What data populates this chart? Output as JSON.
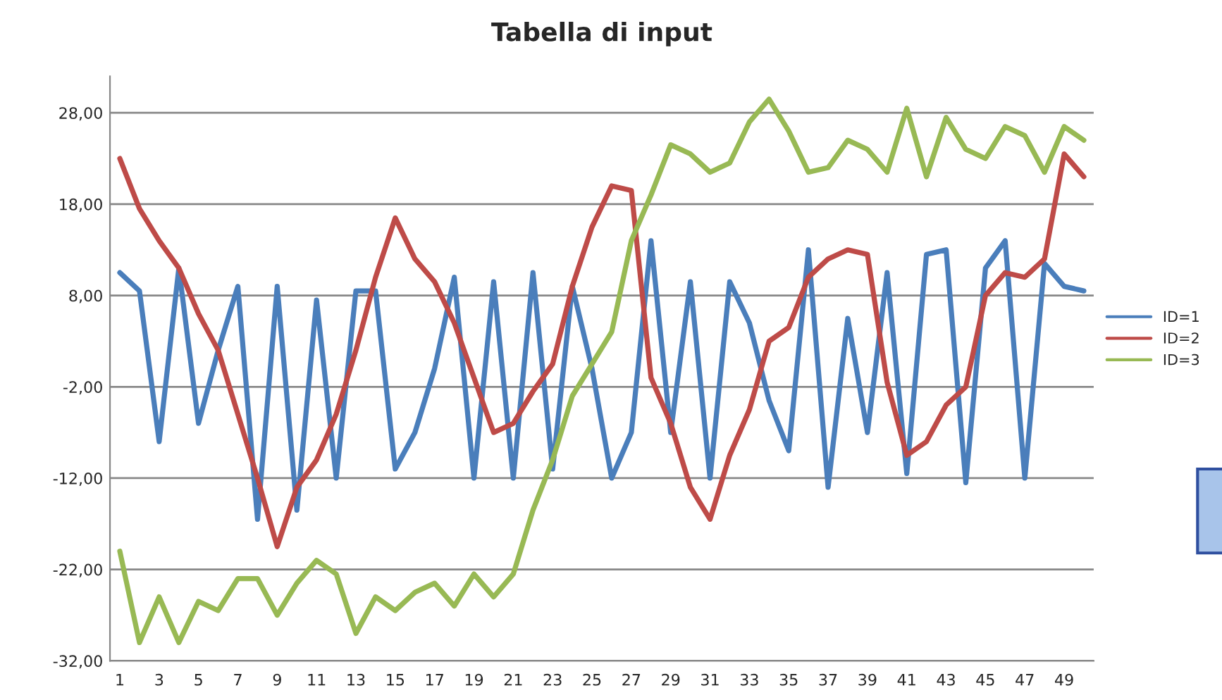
{
  "chart_data": {
    "type": "line",
    "title": "Tabella di input",
    "x": [
      1,
      2,
      3,
      4,
      5,
      6,
      7,
      8,
      9,
      10,
      11,
      12,
      13,
      14,
      15,
      16,
      17,
      18,
      19,
      20,
      21,
      22,
      23,
      24,
      25,
      26,
      27,
      28,
      29,
      30,
      31,
      32,
      33,
      34,
      35,
      36,
      37,
      38,
      39,
      40,
      41,
      42,
      43,
      44,
      45,
      46,
      47,
      48,
      49,
      50
    ],
    "series": [
      {
        "name": "ID=1",
        "color": "#4a7ebb",
        "values": [
          10.5,
          8.5,
          -8,
          11,
          -6,
          2,
          9,
          -16.5,
          9,
          -15.5,
          7.5,
          -12,
          8.5,
          8.5,
          -11,
          -7,
          0,
          10,
          -12,
          9.5,
          -12,
          10.5,
          -11,
          9,
          0,
          -12,
          -7,
          14,
          -7,
          9.5,
          -12,
          9.5,
          5,
          -3.5,
          -9,
          13,
          -13,
          5.5,
          -7,
          10.5,
          -11.5,
          12.5,
          13,
          -12.5,
          11,
          14,
          -12,
          11.5,
          9,
          8.5
        ]
      },
      {
        "name": "ID=2",
        "color": "#be4b48",
        "values": [
          23,
          17.5,
          14,
          11,
          6,
          2,
          -5,
          -12,
          -19.5,
          -13,
          -10,
          -5,
          2,
          10,
          16.5,
          12,
          9.5,
          5,
          -1,
          -7,
          -6,
          -2.5,
          0.5,
          9,
          15.5,
          20,
          19.5,
          -1,
          -6,
          -13,
          -16.5,
          -9.5,
          -4.5,
          3,
          4.5,
          10,
          12,
          13,
          12.5,
          -1.5,
          -9.5,
          -8,
          -4,
          -2,
          8,
          10.5,
          10,
          12,
          23.5,
          21
        ]
      },
      {
        "name": "ID=3",
        "color": "#98b954",
        "values": [
          -20,
          -30,
          -25,
          -30,
          -25.5,
          -26.5,
          -23,
          -23,
          -27,
          -23.5,
          -21,
          -22.5,
          -29,
          -25,
          -26.5,
          -24.5,
          -23.5,
          -26,
          -22.5,
          -25,
          -22.5,
          -15.5,
          -10,
          -3,
          0.5,
          4,
          14,
          19,
          24.5,
          23.5,
          21.5,
          22.5,
          27,
          29.5,
          26,
          21.5,
          22,
          25,
          24,
          21.5,
          28.5,
          21,
          27.5,
          24,
          23,
          26.5,
          25.5,
          21.5,
          26.5,
          25
        ]
      }
    ],
    "xlim": [
      0.5,
      50.5
    ],
    "xticks": [
      1,
      3,
      5,
      7,
      9,
      11,
      13,
      15,
      17,
      19,
      21,
      23,
      25,
      27,
      29,
      31,
      33,
      35,
      37,
      39,
      41,
      43,
      45,
      47,
      49
    ],
    "ylim": [
      -32,
      32
    ],
    "yticks": [
      {
        "value": -32,
        "label": "-32,00"
      },
      {
        "value": -22,
        "label": "-22,00"
      },
      {
        "value": -12,
        "label": "-12,00"
      },
      {
        "value": -2,
        "label": "-2,00"
      },
      {
        "value": 8,
        "label": "8,00"
      },
      {
        "value": 18,
        "label": "18,00"
      },
      {
        "value": 28,
        "label": "28,00"
      }
    ],
    "grid": "y",
    "legend": "right",
    "marker": "none",
    "line_style": "solid"
  }
}
